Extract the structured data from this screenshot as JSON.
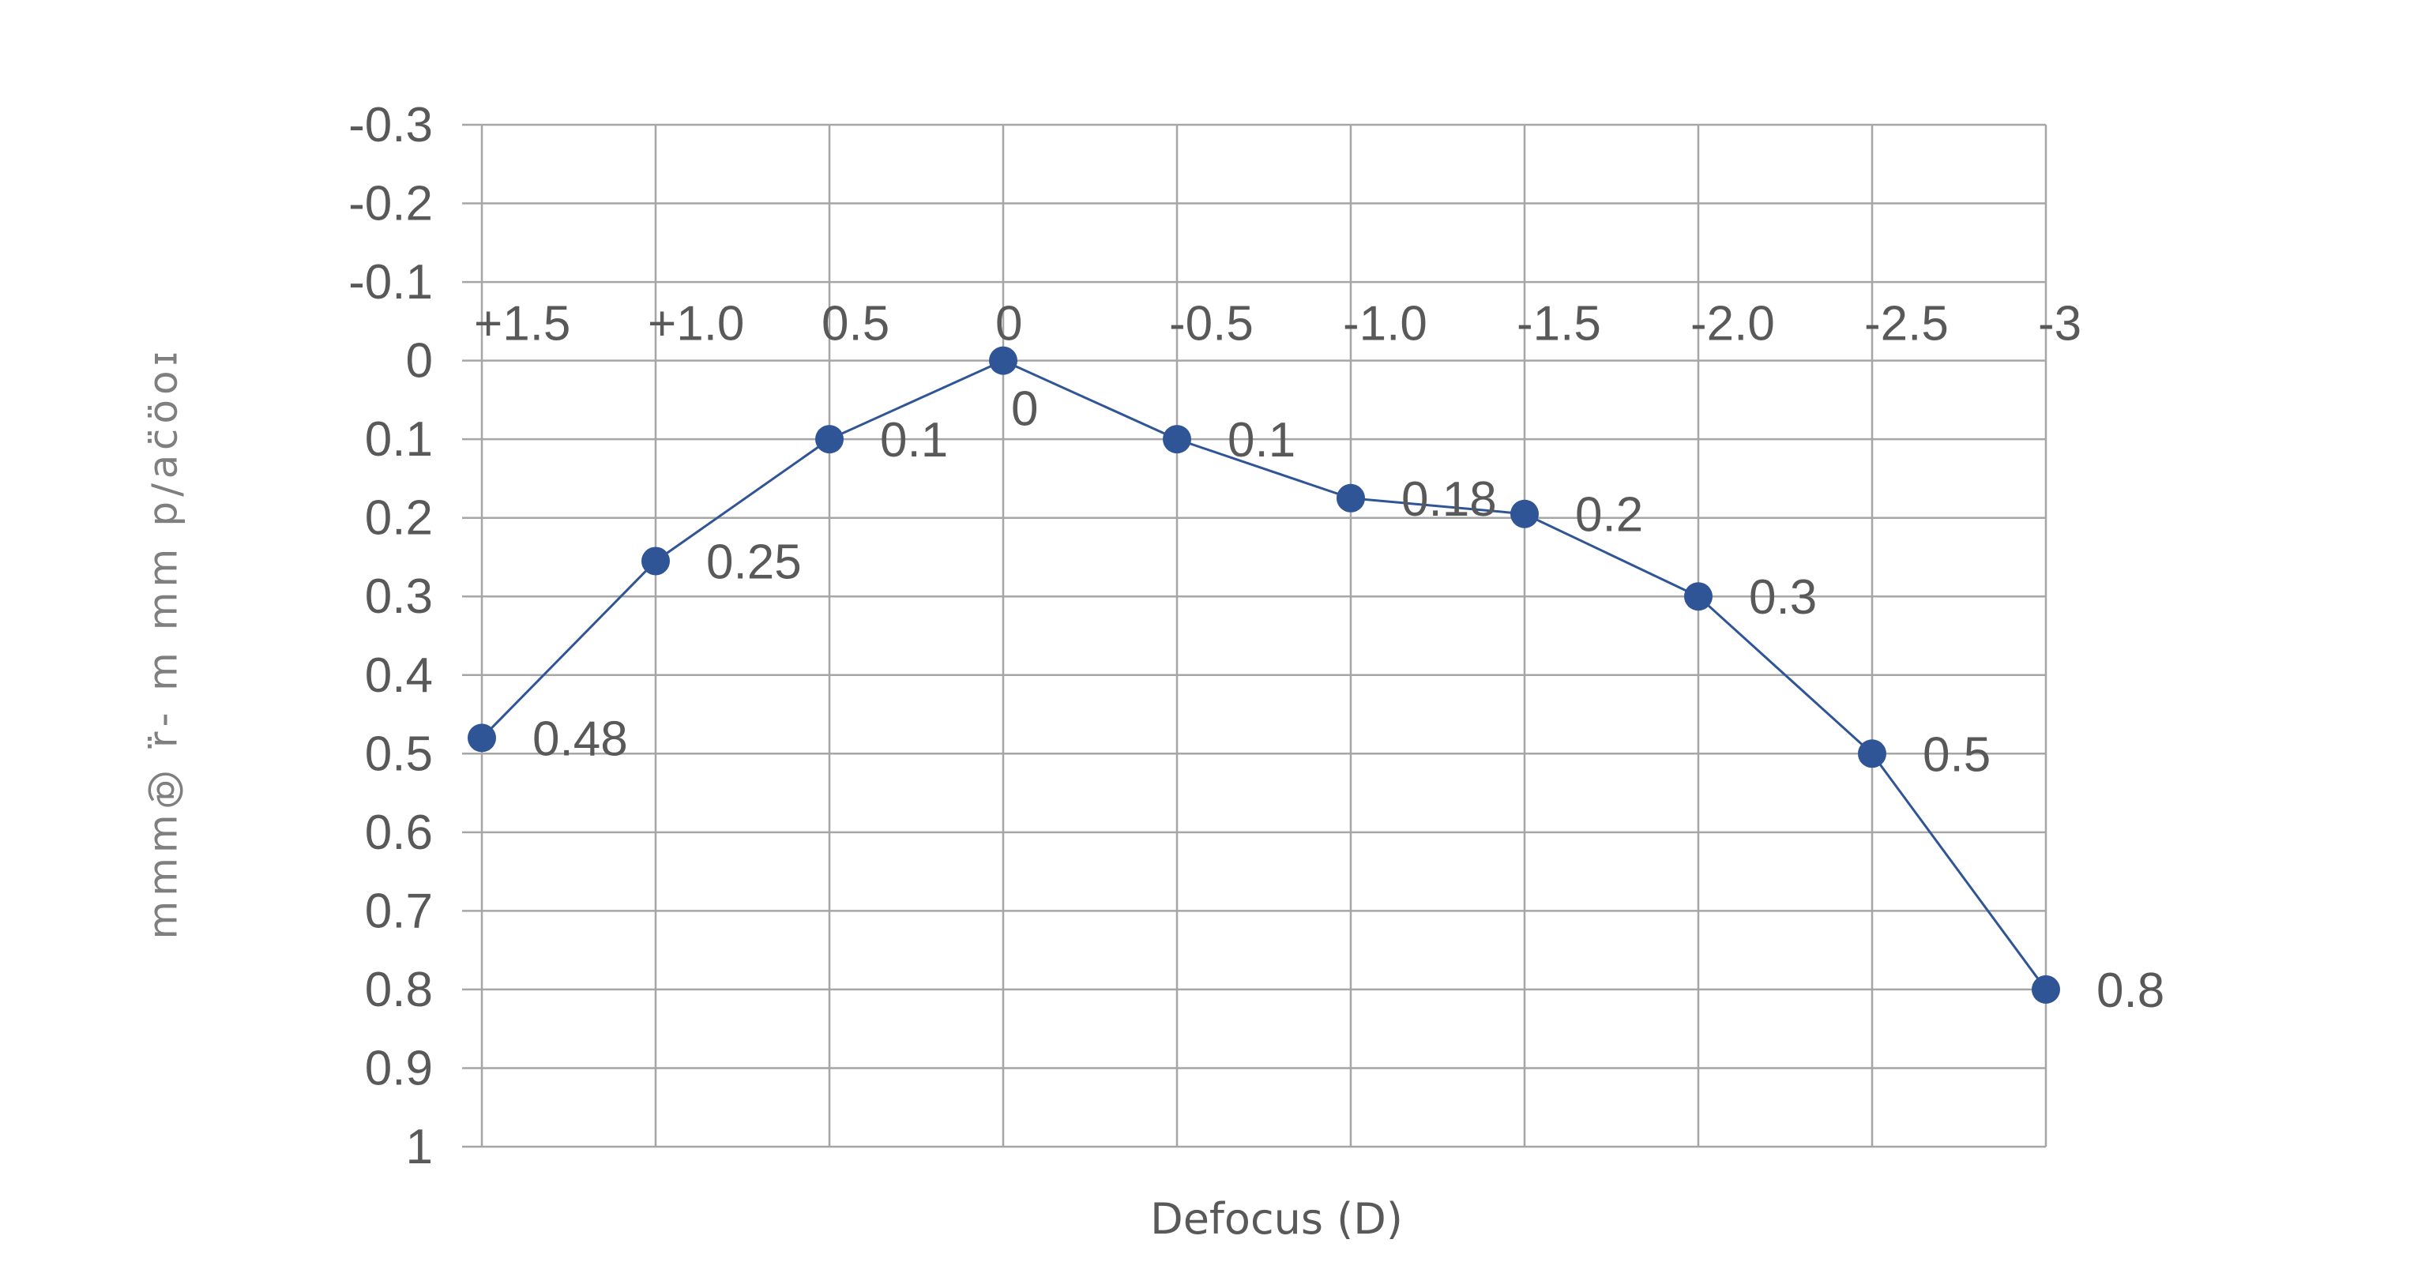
{
  "chart_data": {
    "type": "line",
    "title": "",
    "xlabel": "Defocus (D)",
    "ylabel": "ɪoo̤ɔ̤ɐ/d ɯɯ ɯ -ɹ̤ @ɯɯɯ",
    "y_inverted": true,
    "ylim": [
      -0.3,
      1
    ],
    "y_ticks": [
      "-0.3",
      "-0.2",
      "-0.1",
      "0",
      "0.1",
      "0.2",
      "0.3",
      "0.4",
      "0.5",
      "0.6",
      "0.7",
      "0.8",
      "0.9",
      "1"
    ],
    "x_ticks": [
      "+1.5",
      "+1.0",
      "0.5",
      "0",
      "-0.5",
      "-1.0",
      "-1.5",
      "-2.0",
      "-2.5",
      "-3"
    ],
    "x_axis_position": "top, crossing at y = 0",
    "grid": true,
    "series": [
      {
        "color": "#2f5597",
        "x": [
          1.5,
          1.0,
          0.5,
          0,
          -0.5,
          -1.0,
          -1.5,
          -2.0,
          -2.5,
          -3
        ],
        "y": [
          0.48,
          0.255,
          0.1,
          0,
          0.1,
          0.175,
          0.195,
          0.3,
          0.5,
          0.8
        ],
        "data_labels": [
          "0.48",
          "0.25",
          "0.1",
          "0",
          "0.1",
          "0.18",
          "0.2",
          "0.3",
          "0.5",
          "0.8"
        ]
      }
    ]
  }
}
